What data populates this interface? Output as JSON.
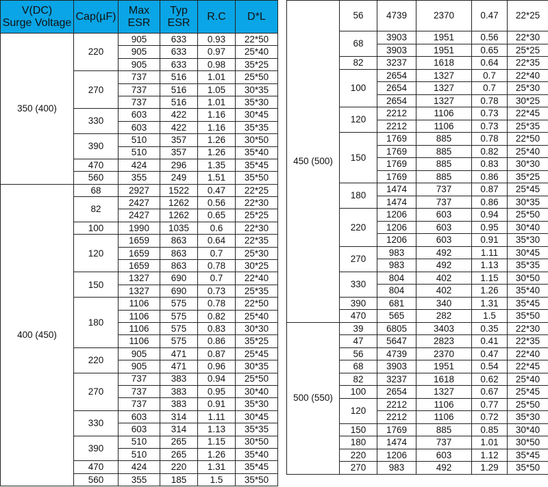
{
  "colors": {
    "header_bg": "#0aa5e6"
  },
  "headers": [
    "V(DC)\nSurge Voltage",
    "Cap(µF)",
    "Max\nESR",
    "Typ\nESR",
    "R.C",
    "D*L"
  ],
  "left_groups": [
    {
      "voltage": "350 (400)",
      "caps": [
        {
          "cap": "220",
          "rows": [
            [
              "905",
              "633",
              "0.93",
              "22*50"
            ],
            [
              "905",
              "633",
              "0.97",
              "25*40"
            ],
            [
              "905",
              "633",
              "0.98",
              "35*25"
            ]
          ]
        },
        {
          "cap": "270",
          "rows": [
            [
              "737",
              "516",
              "1.01",
              "25*50"
            ],
            [
              "737",
              "516",
              "1.05",
              "30*35"
            ],
            [
              "737",
              "516",
              "1.01",
              "35*30"
            ]
          ]
        },
        {
          "cap": "330",
          "rows": [
            [
              "603",
              "422",
              "1.16",
              "30*45"
            ],
            [
              "603",
              "422",
              "1.16",
              "35*35"
            ]
          ]
        },
        {
          "cap": "390",
          "rows": [
            [
              "510",
              "357",
              "1.26",
              "30*50"
            ],
            [
              "510",
              "357",
              "1.26",
              "35*40"
            ]
          ]
        },
        {
          "cap": "470",
          "rows": [
            [
              "424",
              "296",
              "1.35",
              "35*45"
            ]
          ]
        },
        {
          "cap": "560",
          "rows": [
            [
              "355",
              "249",
              "1.51",
              "35*50"
            ]
          ]
        }
      ]
    },
    {
      "voltage": "400 (450)",
      "caps": [
        {
          "cap": "68",
          "rows": [
            [
              "2927",
              "1522",
              "0.47",
              "22*25"
            ]
          ]
        },
        {
          "cap": "82",
          "rows": [
            [
              "2427",
              "1262",
              "0.56",
              "22*30"
            ],
            [
              "2427",
              "1262",
              "0.65",
              "25*25"
            ]
          ]
        },
        {
          "cap": "100",
          "rows": [
            [
              "1990",
              "1035",
              "0.6",
              "22*30"
            ]
          ]
        },
        {
          "cap": "120",
          "rows": [
            [
              "1659",
              "863",
              "0.64",
              "22*35"
            ],
            [
              "1659",
              "863",
              "0.7",
              "25*30"
            ],
            [
              "1659",
              "863",
              "0.78",
              "30*25"
            ]
          ]
        },
        {
          "cap": "150",
          "rows": [
            [
              "1327",
              "690",
              "0.7",
              "22*40"
            ],
            [
              "1327",
              "690",
              "0.73",
              "25*35"
            ]
          ]
        },
        {
          "cap": "180",
          "rows": [
            [
              "1106",
              "575",
              "0.78",
              "22*50"
            ],
            [
              "1106",
              "575",
              "0.82",
              "25*40"
            ],
            [
              "1106",
              "575",
              "0.83",
              "30*30"
            ],
            [
              "1106",
              "575",
              "0.86",
              "35*25"
            ]
          ]
        },
        {
          "cap": "220",
          "rows": [
            [
              "905",
              "471",
              "0.87",
              "25*45"
            ],
            [
              "905",
              "471",
              "0.96",
              "30*35"
            ]
          ]
        },
        {
          "cap": "270",
          "rows": [
            [
              "737",
              "383",
              "0.94",
              "25*50"
            ],
            [
              "737",
              "383",
              "0.95",
              "30*40"
            ],
            [
              "737",
              "383",
              "0.91",
              "35*30"
            ]
          ]
        },
        {
          "cap": "330",
          "rows": [
            [
              "603",
              "314",
              "1.11",
              "30*45"
            ],
            [
              "603",
              "314",
              "1.13",
              "35*35"
            ]
          ]
        },
        {
          "cap": "390",
          "rows": [
            [
              "510",
              "265",
              "1.15",
              "30*50"
            ],
            [
              "510",
              "265",
              "1.26",
              "35*40"
            ]
          ]
        },
        {
          "cap": "470",
          "rows": [
            [
              "424",
              "220",
              "1.31",
              "35*45"
            ]
          ]
        },
        {
          "cap": "560",
          "rows": [
            [
              "355",
              "185",
              "1.5",
              "35*50"
            ]
          ]
        }
      ]
    }
  ],
  "right_groups": [
    {
      "voltage": "450 (500)",
      "caps": [
        {
          "cap": "56",
          "rows": [
            [
              "4739",
              "2370",
              "0.47",
              "22*25"
            ]
          ]
        },
        {
          "cap": "68",
          "rows": [
            [
              "3903",
              "1951",
              "0.56",
              "22*30"
            ],
            [
              "3903",
              "1951",
              "0.65",
              "25*25"
            ]
          ]
        },
        {
          "cap": "82",
          "rows": [
            [
              "3237",
              "1618",
              "0.64",
              "22*35"
            ]
          ]
        },
        {
          "cap": "100",
          "rows": [
            [
              "2654",
              "1327",
              "0.7",
              "22*40"
            ],
            [
              "2654",
              "1327",
              "0.7",
              "25*30"
            ],
            [
              "2654",
              "1327",
              "0.78",
              "30*25"
            ]
          ]
        },
        {
          "cap": "120",
          "rows": [
            [
              "2212",
              "1106",
              "0.73",
              "22*45"
            ],
            [
              "2212",
              "1106",
              "0.73",
              "25*35"
            ]
          ]
        },
        {
          "cap": "150",
          "rows": [
            [
              "1769",
              "885",
              "0.78",
              "22*50"
            ],
            [
              "1769",
              "885",
              "0.82",
              "25*40"
            ],
            [
              "1769",
              "885",
              "0.83",
              "30*30"
            ],
            [
              "1769",
              "885",
              "0.86",
              "35*25"
            ]
          ]
        },
        {
          "cap": "180",
          "rows": [
            [
              "1474",
              "737",
              "0.87",
              "25*45"
            ],
            [
              "1474",
              "737",
              "0.86",
              "30*35"
            ]
          ]
        },
        {
          "cap": "220",
          "rows": [
            [
              "1206",
              "603",
              "0.94",
              "25*50"
            ],
            [
              "1206",
              "603",
              "0.95",
              "30*40"
            ],
            [
              "1206",
              "603",
              "0.91",
              "35*30"
            ]
          ]
        },
        {
          "cap": "270",
          "rows": [
            [
              "983",
              "492",
              "1.11",
              "30*45"
            ],
            [
              "983",
              "492",
              "1.13",
              "35*35"
            ]
          ]
        },
        {
          "cap": "330",
          "rows": [
            [
              "804",
              "402",
              "1.15",
              "30*50"
            ],
            [
              "804",
              "402",
              "1.26",
              "35*40"
            ]
          ]
        },
        {
          "cap": "390",
          "rows": [
            [
              "681",
              "340",
              "1.31",
              "35*45"
            ]
          ]
        },
        {
          "cap": "470",
          "rows": [
            [
              "565",
              "282",
              "1.5",
              "35*50"
            ]
          ]
        }
      ]
    },
    {
      "voltage": "500 (550)",
      "caps": [
        {
          "cap": "39",
          "rows": [
            [
              "6805",
              "3403",
              "0.35",
              "22*30"
            ]
          ]
        },
        {
          "cap": "47",
          "rows": [
            [
              "5647",
              "2823",
              "0.41",
              "22*35"
            ]
          ]
        },
        {
          "cap": "56",
          "rows": [
            [
              "4739",
              "2370",
              "0.47",
              "22*40"
            ]
          ]
        },
        {
          "cap": "68",
          "rows": [
            [
              "3903",
              "1951",
              "0.54",
              "22*45"
            ]
          ]
        },
        {
          "cap": "82",
          "rows": [
            [
              "3237",
              "1618",
              "0.62",
              "25*40"
            ]
          ]
        },
        {
          "cap": "100",
          "rows": [
            [
              "2654",
              "1327",
              "0.67",
              "25*45"
            ]
          ]
        },
        {
          "cap": "120",
          "rows": [
            [
              "2212",
              "1106",
              "0.77",
              "25*50"
            ],
            [
              "2212",
              "1106",
              "0.72",
              "35*30"
            ]
          ]
        },
        {
          "cap": "150",
          "rows": [
            [
              "1769",
              "885",
              "0.85",
              "30*40"
            ]
          ]
        },
        {
          "cap": "180",
          "rows": [
            [
              "1474",
              "737",
              "1.01",
              "30*50"
            ]
          ]
        },
        {
          "cap": "220",
          "rows": [
            [
              "1206",
              "603",
              "1.12",
              "35*45"
            ]
          ]
        },
        {
          "cap": "270",
          "rows": [
            [
              "983",
              "492",
              "1.29",
              "35*50"
            ]
          ]
        }
      ]
    }
  ]
}
